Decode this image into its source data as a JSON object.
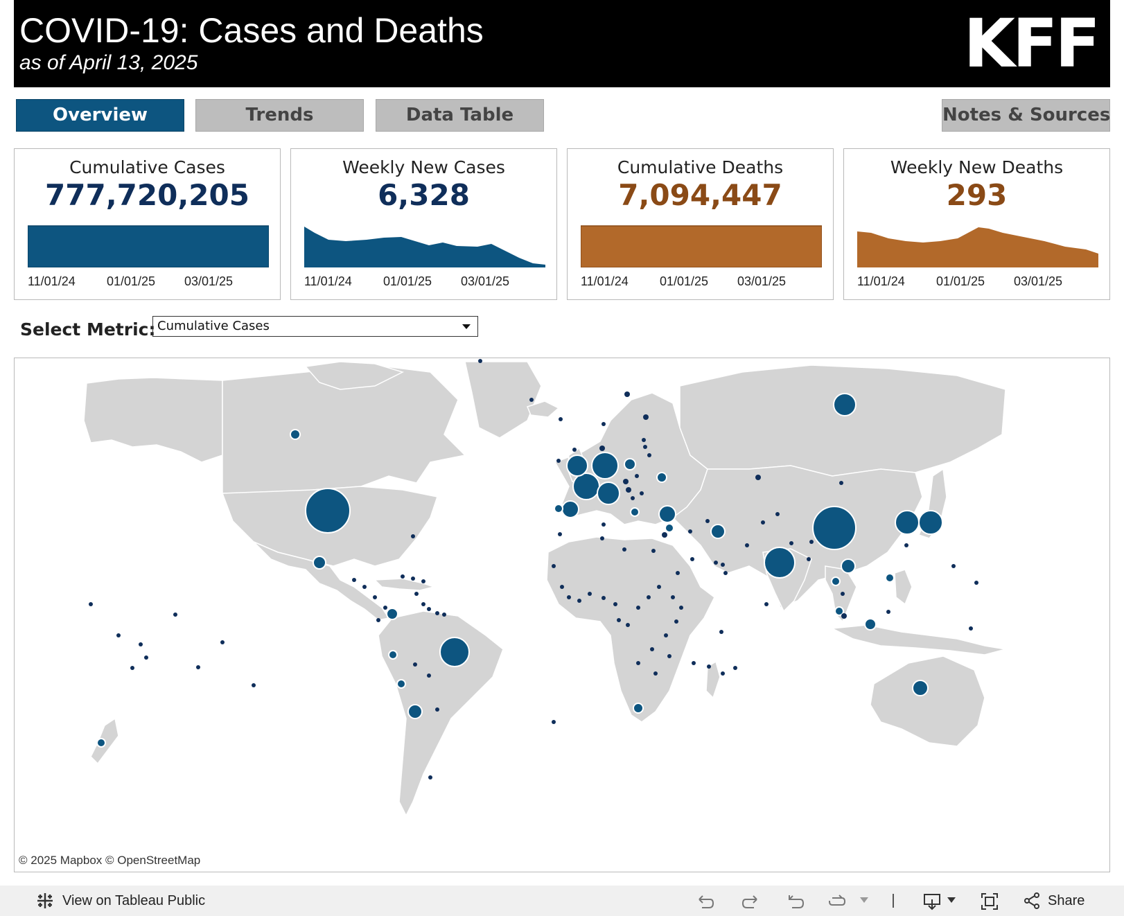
{
  "header": {
    "title": "COVID-19: Cases and Deaths",
    "subtitle": "as of April 13, 2025",
    "logo": "KFF"
  },
  "tabs": [
    {
      "label": "Overview",
      "active": true
    },
    {
      "label": "Trends",
      "active": false
    },
    {
      "label": "Data Table",
      "active": false
    }
  ],
  "notes_button": "Notes & Sources",
  "colors": {
    "blue": "#0d5580",
    "navy": "#0f2e5a",
    "orange": "#b2692a",
    "orange_dark": "#8a4a16"
  },
  "cards": [
    {
      "title": "Cumulative Cases",
      "value": "777,720,205",
      "ticks": [
        "11/01/24",
        "01/01/25",
        "03/01/25"
      ]
    },
    {
      "title": "Weekly New Cases",
      "value": "6,328",
      "ticks": [
        "11/01/24",
        "01/01/25",
        "03/01/25"
      ]
    },
    {
      "title": "Cumulative Deaths",
      "value": "7,094,447",
      "ticks": [
        "11/01/24",
        "01/01/25",
        "03/01/25"
      ]
    },
    {
      "title": "Weekly New Deaths",
      "value": "293",
      "ticks": [
        "11/01/24",
        "01/01/25",
        "03/01/25"
      ]
    }
  ],
  "select": {
    "label": "Select Metric:",
    "value": "Cumulative Cases"
  },
  "map": {
    "credit": "© 2025 Mapbox  © OpenStreetMap"
  },
  "footer": {
    "tableau_link": "View on Tableau Public",
    "share": "Share"
  }
}
